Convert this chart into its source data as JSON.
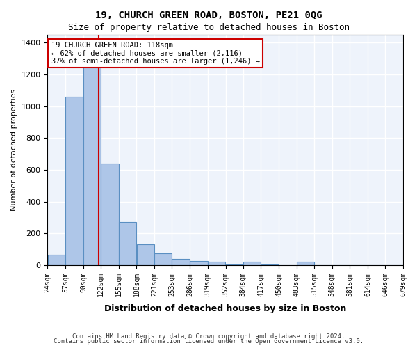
{
  "title1": "19, CHURCH GREEN ROAD, BOSTON, PE21 0QG",
  "title2": "Size of property relative to detached houses in Boston",
  "xlabel": "Distribution of detached houses by size in Boston",
  "ylabel": "Number of detached properties",
  "footnote1": "Contains HM Land Registry data © Crown copyright and database right 2024.",
  "footnote2": "Contains public sector information licensed under the Open Government Licence v3.0.",
  "annotation_line1": "19 CHURCH GREEN ROAD: 118sqm",
  "annotation_line2": "← 62% of detached houses are smaller (2,116)",
  "annotation_line3": "37% of semi-detached houses are larger (1,246) →",
  "bar_color": "#aec6e8",
  "bar_edge_color": "#5a8fc2",
  "vline_color": "#cc0000",
  "vline_x": 118,
  "bins": [
    24,
    57,
    90,
    122,
    155,
    188,
    221,
    253,
    286,
    319,
    352,
    384,
    417,
    450,
    483,
    515,
    548,
    581,
    614,
    646,
    679
  ],
  "bar_heights": [
    65,
    1060,
    1310,
    640,
    270,
    130,
    75,
    40,
    25,
    20,
    5,
    20,
    5,
    0,
    20,
    0,
    0,
    0,
    0,
    0
  ],
  "ylim": [
    0,
    1450
  ],
  "yticks": [
    0,
    200,
    400,
    600,
    800,
    1000,
    1200,
    1400
  ],
  "background_color": "#eef3fb",
  "grid_color": "#ffffff",
  "annotation_box_color": "#ffffff",
  "annotation_box_edge": "#cc0000"
}
